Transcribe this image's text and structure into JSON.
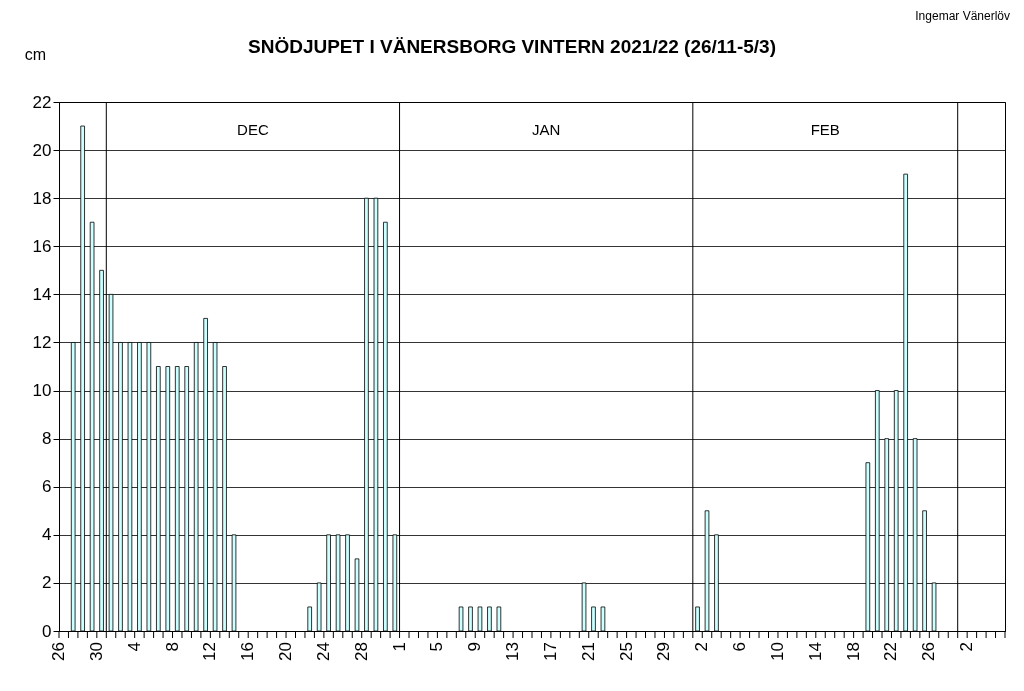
{
  "chart_data": {
    "type": "bar",
    "title": "SNÖDJUPET I VÄNERSBORG  VINTERN 2021/22 (26/11-5/3)",
    "ylabel": "cm",
    "x": [
      "2021-11-26",
      "2021-11-27",
      "2021-11-28",
      "2021-11-29",
      "2021-11-30",
      "2021-12-01",
      "2021-12-02",
      "2021-12-03",
      "2021-12-04",
      "2021-12-05",
      "2021-12-06",
      "2021-12-07",
      "2021-12-08",
      "2021-12-09",
      "2021-12-10",
      "2021-12-11",
      "2021-12-12",
      "2021-12-13",
      "2021-12-14",
      "2021-12-15",
      "2021-12-16",
      "2021-12-17",
      "2021-12-18",
      "2021-12-19",
      "2021-12-20",
      "2021-12-21",
      "2021-12-22",
      "2021-12-23",
      "2021-12-24",
      "2021-12-25",
      "2021-12-26",
      "2021-12-27",
      "2021-12-28",
      "2021-12-29",
      "2021-12-30",
      "2021-12-31",
      "2022-01-01",
      "2022-01-02",
      "2022-01-03",
      "2022-01-04",
      "2022-01-05",
      "2022-01-06",
      "2022-01-07",
      "2022-01-08",
      "2022-01-09",
      "2022-01-10",
      "2022-01-11",
      "2022-01-12",
      "2022-01-13",
      "2022-01-14",
      "2022-01-15",
      "2022-01-16",
      "2022-01-17",
      "2022-01-18",
      "2022-01-19",
      "2022-01-20",
      "2022-01-21",
      "2022-01-22",
      "2022-01-23",
      "2022-01-24",
      "2022-01-25",
      "2022-01-26",
      "2022-01-27",
      "2022-01-28",
      "2022-01-29",
      "2022-01-30",
      "2022-01-31",
      "2022-02-01",
      "2022-02-02",
      "2022-02-03",
      "2022-02-04",
      "2022-02-05",
      "2022-02-06",
      "2022-02-07",
      "2022-02-08",
      "2022-02-09",
      "2022-02-10",
      "2022-02-11",
      "2022-02-12",
      "2022-02-13",
      "2022-02-14",
      "2022-02-15",
      "2022-02-16",
      "2022-02-17",
      "2022-02-18",
      "2022-02-19",
      "2022-02-20",
      "2022-02-21",
      "2022-02-22",
      "2022-02-23",
      "2022-02-24",
      "2022-02-25",
      "2022-02-26",
      "2022-02-27",
      "2022-02-28",
      "2022-03-01",
      "2022-03-02",
      "2022-03-03",
      "2022-03-04",
      "2022-03-05"
    ],
    "values": [
      0,
      12,
      21,
      17,
      15,
      14,
      12,
      12,
      12,
      12,
      11,
      11,
      11,
      11,
      12,
      13,
      12,
      11,
      4,
      0,
      0,
      0,
      0,
      0,
      0,
      0,
      1,
      2,
      4,
      4,
      4,
      3,
      18,
      18,
      17,
      4,
      0,
      0,
      0,
      0,
      0,
      0,
      1,
      1,
      1,
      1,
      1,
      0,
      0,
      0,
      0,
      0,
      0,
      0,
      0,
      2,
      1,
      1,
      0,
      0,
      0,
      0,
      0,
      0,
      0,
      0,
      0,
      1,
      5,
      4,
      0,
      0,
      0,
      0,
      0,
      0,
      0,
      0,
      0,
      0,
      0,
      0,
      0,
      0,
      0,
      7,
      10,
      8,
      10,
      19,
      8,
      5,
      2,
      0,
      0,
      0,
      0,
      0,
      0,
      0
    ],
    "color": "#ccffff",
    "xlim": [
      "2021-11-26",
      "2022-03-06"
    ],
    "xticks": [
      {
        "value": "2021-11-26",
        "label": "26"
      },
      {
        "value": "2021-11-27",
        "label": null
      },
      {
        "value": "2021-11-28",
        "label": null
      },
      {
        "value": "2021-11-29",
        "label": null
      },
      {
        "value": "2021-11-30",
        "label": "30"
      },
      {
        "value": "2021-12-01",
        "label": null
      },
      {
        "value": "2021-12-02",
        "label": null
      },
      {
        "value": "2021-12-03",
        "label": null
      },
      {
        "value": "2021-12-04",
        "label": "4"
      },
      {
        "value": "2021-12-05",
        "label": null
      },
      {
        "value": "2021-12-06",
        "label": null
      },
      {
        "value": "2021-12-07",
        "label": null
      },
      {
        "value": "2021-12-08",
        "label": "8"
      },
      {
        "value": "2021-12-09",
        "label": null
      },
      {
        "value": "2021-12-10",
        "label": null
      },
      {
        "value": "2021-12-11",
        "label": null
      },
      {
        "value": "2021-12-12",
        "label": "12"
      },
      {
        "value": "2021-12-13",
        "label": null
      },
      {
        "value": "2021-12-14",
        "label": null
      },
      {
        "value": "2021-12-15",
        "label": null
      },
      {
        "value": "2021-12-16",
        "label": "16"
      },
      {
        "value": "2021-12-17",
        "label": null
      },
      {
        "value": "2021-12-18",
        "label": null
      },
      {
        "value": "2021-12-19",
        "label": null
      },
      {
        "value": "2021-12-20",
        "label": "20"
      },
      {
        "value": "2021-12-21",
        "label": null
      },
      {
        "value": "2021-12-22",
        "label": null
      },
      {
        "value": "2021-12-23",
        "label": null
      },
      {
        "value": "2021-12-24",
        "label": "24"
      },
      {
        "value": "2021-12-25",
        "label": null
      },
      {
        "value": "2021-12-26",
        "label": null
      },
      {
        "value": "2021-12-27",
        "label": null
      },
      {
        "value": "2021-12-28",
        "label": "28"
      },
      {
        "value": "2021-12-29",
        "label": null
      },
      {
        "value": "2021-12-30",
        "label": null
      },
      {
        "value": "2021-12-31",
        "label": null
      },
      {
        "value": "2022-01-01",
        "label": "1"
      },
      {
        "value": "2022-01-02",
        "label": null
      },
      {
        "value": "2022-01-03",
        "label": null
      },
      {
        "value": "2022-01-04",
        "label": null
      },
      {
        "value": "2022-01-05",
        "label": "5"
      },
      {
        "value": "2022-01-06",
        "label": null
      },
      {
        "value": "2022-01-07",
        "label": null
      },
      {
        "value": "2022-01-08",
        "label": null
      },
      {
        "value": "2022-01-09",
        "label": "9"
      },
      {
        "value": "2022-01-10",
        "label": null
      },
      {
        "value": "2022-01-11",
        "label": null
      },
      {
        "value": "2022-01-12",
        "label": null
      },
      {
        "value": "2022-01-13",
        "label": "13"
      },
      {
        "value": "2022-01-14",
        "label": null
      },
      {
        "value": "2022-01-15",
        "label": null
      },
      {
        "value": "2022-01-16",
        "label": null
      },
      {
        "value": "2022-01-17",
        "label": "17"
      },
      {
        "value": "2022-01-18",
        "label": null
      },
      {
        "value": "2022-01-19",
        "label": null
      },
      {
        "value": "2022-01-20",
        "label": null
      },
      {
        "value": "2022-01-21",
        "label": "21"
      },
      {
        "value": "2022-01-22",
        "label": null
      },
      {
        "value": "2022-01-23",
        "label": null
      },
      {
        "value": "2022-01-24",
        "label": null
      },
      {
        "value": "2022-01-25",
        "label": "25"
      },
      {
        "value": "2022-01-26",
        "label": null
      },
      {
        "value": "2022-01-27",
        "label": null
      },
      {
        "value": "2022-01-28",
        "label": null
      },
      {
        "value": "2022-01-29",
        "label": "29"
      },
      {
        "value": "2022-01-30",
        "label": null
      },
      {
        "value": "2022-01-31",
        "label": null
      },
      {
        "value": "2022-02-01",
        "label": null
      },
      {
        "value": "2022-02-02",
        "label": "2"
      },
      {
        "value": "2022-02-03",
        "label": null
      },
      {
        "value": "2022-02-04",
        "label": null
      },
      {
        "value": "2022-02-05",
        "label": null
      },
      {
        "value": "2022-02-06",
        "label": "6"
      },
      {
        "value": "2022-02-07",
        "label": null
      },
      {
        "value": "2022-02-08",
        "label": null
      },
      {
        "value": "2022-02-09",
        "label": null
      },
      {
        "value": "2022-02-10",
        "label": "10"
      },
      {
        "value": "2022-02-11",
        "label": null
      },
      {
        "value": "2022-02-12",
        "label": null
      },
      {
        "value": "2022-02-13",
        "label": null
      },
      {
        "value": "2022-02-14",
        "label": "14"
      },
      {
        "value": "2022-02-15",
        "label": null
      },
      {
        "value": "2022-02-16",
        "label": null
      },
      {
        "value": "2022-02-17",
        "label": null
      },
      {
        "value": "2022-02-18",
        "label": "18"
      },
      {
        "value": "2022-02-19",
        "label": null
      },
      {
        "value": "2022-02-20",
        "label": null
      },
      {
        "value": "2022-02-21",
        "label": null
      },
      {
        "value": "2022-02-22",
        "label": "22"
      },
      {
        "value": "2022-02-23",
        "label": null
      },
      {
        "value": "2022-02-24",
        "label": null
      },
      {
        "value": "2022-02-25",
        "label": null
      },
      {
        "value": "2022-02-26",
        "label": "26"
      },
      {
        "value": "2022-02-27",
        "label": null
      },
      {
        "value": "2022-02-28",
        "label": null
      },
      {
        "value": "2022-03-01",
        "label": null
      },
      {
        "value": "2022-03-02",
        "label": "2"
      },
      {
        "value": "2022-03-03",
        "label": null
      },
      {
        "value": "2022-03-04",
        "label": null
      },
      {
        "value": "2022-03-05",
        "label": null
      },
      {
        "value": "2022-03-06",
        "label": null
      }
    ],
    "ylim": [
      0,
      22
    ],
    "yticks": [
      0,
      2,
      4,
      6,
      8,
      10,
      12,
      14,
      16,
      18,
      20,
      22
    ],
    "grid": "y",
    "ref_lines": [
      {
        "axis": "x",
        "value": "2021-12-01"
      },
      {
        "axis": "x",
        "value": "2022-01-01"
      },
      {
        "axis": "x",
        "value": "2022-02-01"
      },
      {
        "axis": "x",
        "value": "2022-03-01"
      }
    ],
    "annotations": [
      "DEC",
      "JAN",
      "FEB",
      "Ingemar Vänerlöv"
    ]
  }
}
